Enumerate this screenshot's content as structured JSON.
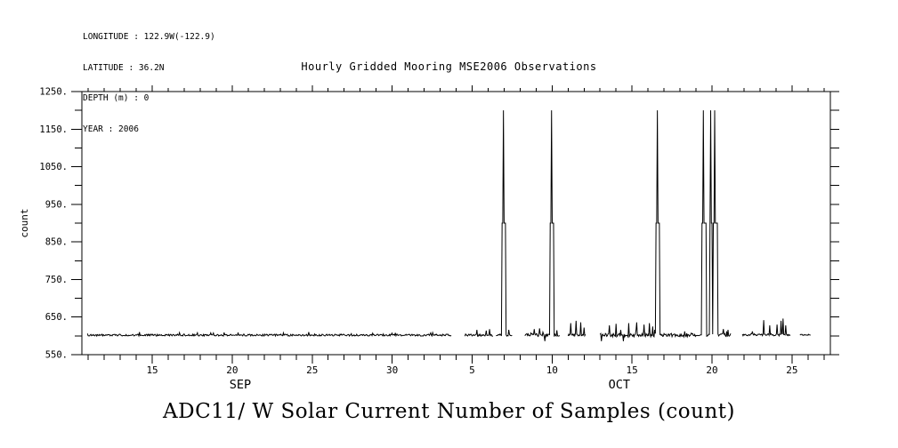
{
  "meta": {
    "lines": [
      "LONGITUDE : 122.9W(-122.9)",
      "LATITUDE : 36.2N",
      "DEPTH (m) : 0",
      "YEAR : 2006"
    ]
  },
  "title": "Hourly Gridded Mooring MSE2006 Observations",
  "bottom_title": "ADC11/ W Solar Current Number of Samples (count)",
  "colors": {
    "foreground": "#000000",
    "background": "#ffffff"
  },
  "chart_data": {
    "type": "line",
    "title": "Hourly Gridded Mooring MSE2006 Observations",
    "ylabel": "count",
    "x_units_note": "day axis: days since Sep 1 2006; Oct D = 30 + D",
    "x_axis": {
      "min_day": 10.6,
      "max_day": 57.4,
      "minor_tick_step": 1,
      "major_tick_step": 5,
      "major_ticks": [
        {
          "day": 15,
          "label": "15"
        },
        {
          "day": 20,
          "label": "20"
        },
        {
          "day": 25,
          "label": "25"
        },
        {
          "day": 30,
          "label": "30"
        },
        {
          "day": 35,
          "label": "5"
        },
        {
          "day": 40,
          "label": "10"
        },
        {
          "day": 45,
          "label": "15"
        },
        {
          "day": 50,
          "label": "20"
        },
        {
          "day": 55,
          "label": "25"
        }
      ],
      "month_labels": [
        {
          "label": "SEP",
          "day": 20.5
        },
        {
          "label": "OCT",
          "day": 44.2
        }
      ]
    },
    "y_axis": {
      "min": 550,
      "max": 1250,
      "major_tick_step": 100,
      "minor_tick_step": 50,
      "tick_labels": [
        "550.",
        "650.",
        "750.",
        "850.",
        "950.",
        "1050.",
        "1150.",
        "1250."
      ]
    },
    "baseline_value": 602,
    "segments": [
      {
        "x_start": 10.95,
        "x_end": 33.7,
        "baseline": 602,
        "noise": 2.5,
        "bumps": [
          [
            14.2,
            610
          ],
          [
            19.5,
            609
          ],
          [
            24.8,
            610
          ],
          [
            30.2,
            608
          ]
        ]
      },
      {
        "x_start": 34.55,
        "x_end": 36.3,
        "baseline": 602,
        "noise": 3,
        "bumps": [
          [
            35.3,
            616
          ],
          [
            35.9,
            614
          ],
          [
            36.1,
            618
          ]
        ]
      },
      {
        "x_start": 36.5,
        "x_end": 37.5,
        "baseline": 602,
        "noise": 3,
        "bumps": [
          [
            37.3,
            616
          ]
        ]
      },
      {
        "x_start": 38.3,
        "x_end": 40.5,
        "baseline": 602,
        "noise": 4,
        "bumps": [
          [
            38.9,
            618
          ],
          [
            39.2,
            620
          ],
          [
            39.55,
            586
          ],
          [
            40.3,
            615
          ]
        ]
      },
      {
        "x_start": 41.0,
        "x_end": 42.1,
        "baseline": 602,
        "noise": 3,
        "bumps": [
          [
            41.15,
            634
          ],
          [
            41.5,
            640
          ],
          [
            41.8,
            636
          ],
          [
            42.0,
            622
          ]
        ]
      },
      {
        "x_start": 43.0,
        "x_end": 51.2,
        "baseline": 602,
        "noise": 4.5,
        "bumps": [
          [
            43.1,
            586
          ],
          [
            43.6,
            628
          ],
          [
            44.0,
            632
          ],
          [
            44.45,
            586
          ],
          [
            44.8,
            634
          ],
          [
            45.3,
            636
          ],
          [
            45.75,
            630
          ],
          [
            46.1,
            634
          ],
          [
            46.3,
            625
          ],
          [
            48.3,
            612
          ],
          [
            50.7,
            618
          ],
          [
            50.9,
            612
          ]
        ]
      },
      {
        "x_start": 51.9,
        "x_end": 54.9,
        "baseline": 603,
        "noise": 3,
        "bumps": [
          [
            53.25,
            642
          ],
          [
            53.6,
            628
          ],
          [
            54.05,
            630
          ],
          [
            54.3,
            640
          ],
          [
            54.45,
            646
          ],
          [
            54.6,
            628
          ]
        ]
      },
      {
        "x_start": 55.5,
        "x_end": 56.2,
        "baseline": 603,
        "noise": 1.5,
        "bumps": []
      }
    ],
    "spike_events": [
      {
        "start": 36.86,
        "end": 37.12,
        "plateau": 900,
        "peak_x": 36.97,
        "peak": 1200
      },
      {
        "start": 39.88,
        "end": 40.12,
        "plateau": 900,
        "peak_x": 39.98,
        "peak": 1200
      },
      {
        "start": 46.48,
        "end": 46.72,
        "plateau": 900,
        "peak_x": 46.58,
        "peak": 1200
      },
      {
        "start": 49.36,
        "end": 49.66,
        "plateau": 900,
        "peak_x": 49.45,
        "peak": 1200
      },
      {
        "start": 49.84,
        "end": 50.02,
        "plateau": 900,
        "peak_x": 49.9,
        "peak": 1200
      },
      {
        "start": 50.08,
        "end": 50.36,
        "plateau": 900,
        "peak_x": 50.17,
        "peak": 1200
      }
    ]
  }
}
